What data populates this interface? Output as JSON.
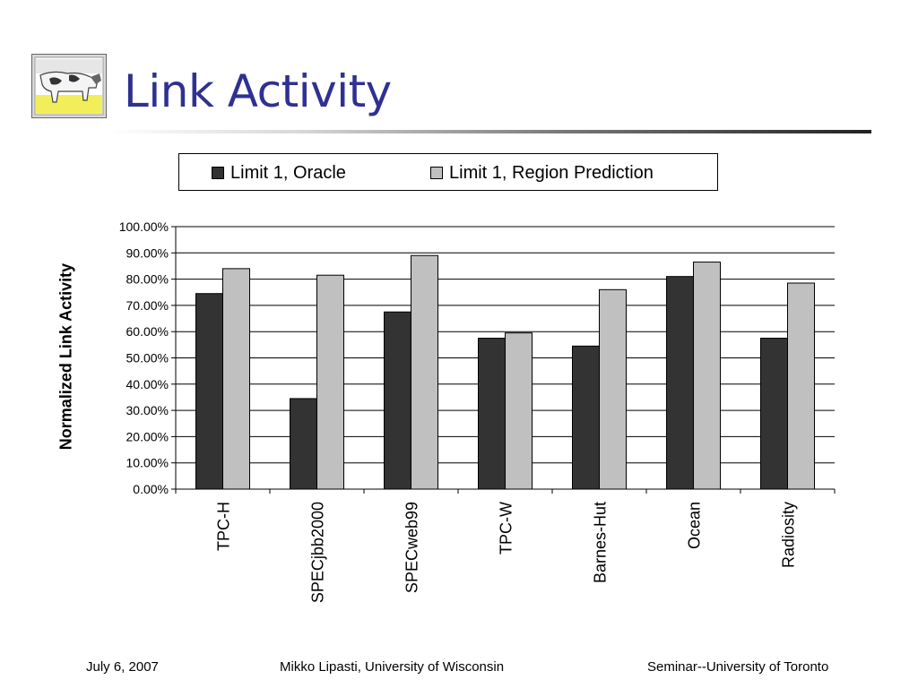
{
  "slide": {
    "title": "Link Activity",
    "footer_left": "July 6, 2007",
    "footer_center": "Mikko Lipasti, University of Wisconsin",
    "footer_right": "Seminar--University of Toronto"
  },
  "logo_icon": "cow-in-field-icon",
  "colors": {
    "title": "#2e3192",
    "series_oracle": "#333333",
    "series_prediction": "#c0c0c0"
  },
  "chart_data": {
    "type": "bar",
    "title": "",
    "xlabel": "",
    "ylabel": "Normalized Link Activity",
    "ylim": [
      0,
      100
    ],
    "y_tick_labels": [
      "0.00%",
      "10.00%",
      "20.00%",
      "30.00%",
      "40.00%",
      "50.00%",
      "60.00%",
      "70.00%",
      "80.00%",
      "90.00%",
      "100.00%"
    ],
    "grid": true,
    "legend_position": "top",
    "categories": [
      "TPC-H",
      "SPECjbb2000",
      "SPECweb99",
      "TPC-W",
      "Barnes-Hut",
      "Ocean",
      "Radiosity"
    ],
    "series": [
      {
        "name": "Limit 1, Oracle",
        "values": [
          74.5,
          34.5,
          67.5,
          57.5,
          54.5,
          81,
          57.5
        ]
      },
      {
        "name": "Limit 1, Region Prediction",
        "values": [
          84,
          81.5,
          89,
          59.5,
          76,
          86.5,
          78.5
        ]
      }
    ]
  }
}
